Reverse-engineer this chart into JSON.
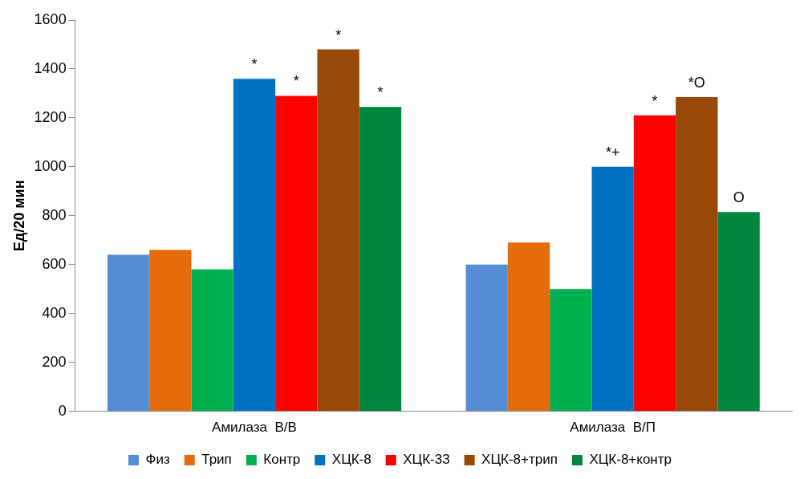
{
  "chart_data": {
    "type": "bar",
    "ylabel": "Ед/20 мин",
    "categories": [
      "Амилаза  В/В",
      "Амилаза  В/П"
    ],
    "ylim": [
      0,
      1600
    ],
    "yticks": [
      0,
      200,
      400,
      600,
      800,
      1000,
      1200,
      1400,
      1600
    ],
    "grid": false,
    "legend": "bottom",
    "series": [
      {
        "name": "Физ",
        "color": "#558ed5",
        "values": [
          640,
          600
        ],
        "value_labels": [
          null,
          null
        ]
      },
      {
        "name": "Трип",
        "color": "#e46c0a",
        "values": [
          660,
          690
        ],
        "value_labels": [
          null,
          null
        ]
      },
      {
        "name": "Контр",
        "color": "#00b050",
        "values": [
          580,
          500
        ],
        "value_labels": [
          null,
          null
        ]
      },
      {
        "name": "ХЦК-8",
        "color": "#0070c0",
        "values": [
          1360,
          1000
        ],
        "value_labels": [
          "*",
          "*+"
        ]
      },
      {
        "name": "ХЦК-33",
        "color": "#ff0000",
        "values": [
          1290,
          1210
        ],
        "value_labels": [
          "*",
          "*"
        ]
      },
      {
        "name": "ХЦК-8+трип",
        "color": "#984807",
        "values": [
          1480,
          1285
        ],
        "value_labels": [
          "*",
          "*O"
        ]
      },
      {
        "name": "ХЦК-8+контр",
        "color": "#00873e",
        "values": [
          1245,
          815
        ],
        "value_labels": [
          "*",
          "O"
        ]
      }
    ]
  }
}
